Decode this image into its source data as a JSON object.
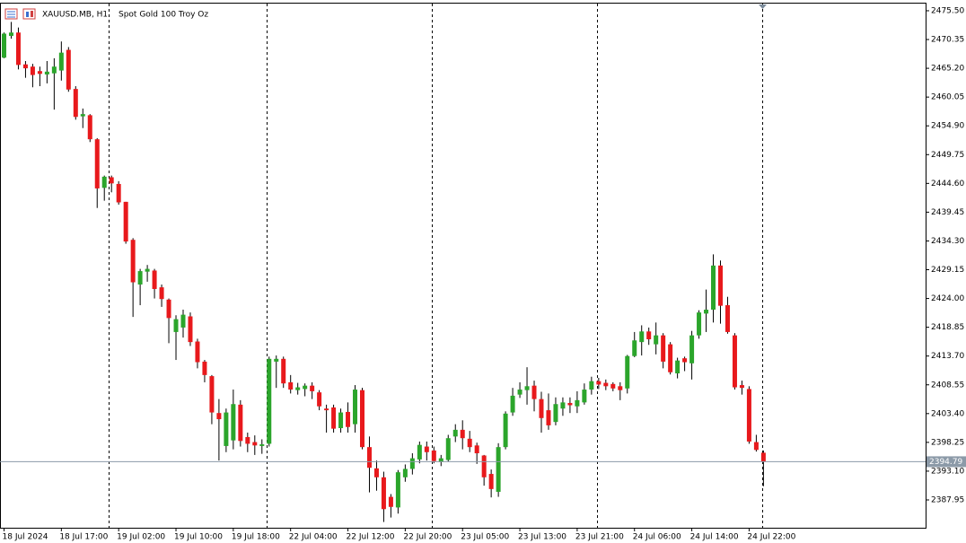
{
  "chart_data": {
    "type": "candlestick",
    "title": "XAUUSD.MB, H1",
    "subtitle": "Spot Gold 100 Troy Oz",
    "categories": [
      "18 Jul 2024",
      null,
      null,
      null,
      null,
      null,
      null,
      null,
      "18 Jul 17:00",
      null,
      null,
      null,
      null,
      null,
      null,
      null,
      "19 Jul 02:00",
      null,
      null,
      null,
      null,
      null,
      null,
      null,
      "19 Jul 10:00",
      null,
      null,
      null,
      null,
      null,
      null,
      null,
      "19 Jul 18:00",
      null,
      null,
      null,
      null,
      null,
      null,
      null,
      "22 Jul 04:00",
      null,
      null,
      null,
      null,
      null,
      null,
      null,
      "22 Jul 12:00",
      null,
      null,
      null,
      null,
      null,
      null,
      null,
      "22 Jul 20:00",
      null,
      null,
      null,
      null,
      null,
      null,
      null,
      "23 Jul 05:00",
      null,
      null,
      null,
      null,
      null,
      null,
      null,
      "23 Jul 13:00",
      null,
      null,
      null,
      null,
      null,
      null,
      null,
      "23 Jul 21:00",
      null,
      null,
      null,
      null,
      null,
      null,
      null,
      "24 Jul 06:00",
      null,
      null,
      null,
      null,
      null,
      null,
      null,
      "24 Jul 14:00",
      null,
      null,
      null,
      null,
      null,
      null,
      null,
      "24 Jul 22:00",
      null,
      null
    ],
    "open": [
      2467.1,
      2471.0,
      2471.6,
      2465.9,
      2465.5,
      2464.7,
      2464.1,
      2464.3,
      2464.8,
      2468.5,
      2461.5,
      2456.6,
      2456.8,
      2452.5,
      2443.8,
      2445.7,
      2444.5,
      2441.3,
      2434.5,
      2426.5,
      2428.8,
      2429.0,
      2426.0,
      2423.8,
      2418.0,
      2418.8,
      2420.8,
      2416.3,
      2412.7,
      2410.1,
      2403.5,
      2397.6,
      2398.6,
      2405.0,
      2399.2,
      2398.3,
      2397.6,
      2398.0,
      2412.7,
      2413.2,
      2409.0,
      2407.6,
      2407.8,
      2408.4,
      2407.2,
      2404.3,
      2404.5,
      2400.8,
      2403.7,
      2401.5,
      2407.6,
      2397.4,
      2393.6,
      2392.0,
      2388.5,
      2386.6,
      2392.0,
      2393.5,
      2395.2,
      2397.5,
      2396.8,
      2394.7,
      2395.1,
      2399.3,
      2400.5,
      2398.9,
      2397.7,
      2395.9,
      2392.6,
      2389.4,
      2397.4,
      2403.6,
      2406.8,
      2407.6,
      2408.4,
      2406.0,
      2404.0,
      2401.9,
      2404.3,
      2405.3,
      2404.7,
      2405.4,
      2407.7,
      2409.2,
      2408.9,
      2408.7,
      2408.3,
      2407.9,
      2413.7,
      2416.2,
      2418.1,
      2415.8,
      2417.4,
      2415.8,
      2410.6,
      2413.3,
      2412.4,
      2417.4,
      2421.3,
      2422.0,
      2429.9,
      2422.8,
      2417.4,
      2408.5,
      2407.8,
      2398.3,
      2396.4
    ],
    "high": [
      2471.6,
      2473.5,
      2472.5,
      2466.5,
      2466.0,
      2465.5,
      2466.5,
      2467.0,
      2470.0,
      2469.0,
      2462.0,
      2458.0,
      2457.0,
      2452.7,
      2446.0,
      2446.0,
      2445.0,
      2441.3,
      2434.8,
      2429.3,
      2430.0,
      2429.3,
      2426.5,
      2424.0,
      2421.0,
      2422.0,
      2421.5,
      2416.8,
      2413.0,
      2410.3,
      2406.0,
      2404.3,
      2407.7,
      2405.8,
      2400.0,
      2399.5,
      2398.8,
      2413.6,
      2413.8,
      2413.6,
      2410.3,
      2408.9,
      2408.8,
      2409.0,
      2407.6,
      2405.0,
      2405.0,
      2404.3,
      2405.4,
      2408.5,
      2408.0,
      2399.3,
      2395.0,
      2393.0,
      2389.0,
      2393.3,
      2394.3,
      2396.3,
      2398.4,
      2398.4,
      2397.5,
      2396.0,
      2399.6,
      2401.5,
      2402.2,
      2400.3,
      2398.2,
      2396.0,
      2393.4,
      2398.1,
      2403.8,
      2408.0,
      2409.0,
      2411.7,
      2409.3,
      2407.3,
      2407.0,
      2406.3,
      2406.3,
      2406.3,
      2407.4,
      2408.8,
      2410.0,
      2409.8,
      2409.5,
      2409.0,
      2409.0,
      2413.9,
      2418.0,
      2419.2,
      2418.8,
      2419.7,
      2417.8,
      2416.2,
      2413.4,
      2413.6,
      2418.2,
      2421.9,
      2425.6,
      2431.9,
      2430.8,
      2424.3,
      2417.8,
      2409.3,
      2408.3,
      2399.6,
      2396.8
    ],
    "low": [
      2467.0,
      2470.5,
      2465.0,
      2463.5,
      2461.8,
      2462.0,
      2462.5,
      2457.8,
      2463.0,
      2461.0,
      2456.0,
      2454.5,
      2452.0,
      2440.2,
      2441.5,
      2443.0,
      2440.8,
      2433.8,
      2420.7,
      2422.8,
      2427.0,
      2424.0,
      2422.5,
      2416.0,
      2413.0,
      2417.0,
      2415.5,
      2411.5,
      2409.0,
      2401.5,
      2395.0,
      2396.5,
      2397.0,
      2397.5,
      2396.5,
      2396.0,
      2396.2,
      2397.5,
      2408.0,
      2408.0,
      2407.0,
      2406.8,
      2406.5,
      2406.0,
      2404.0,
      2400.0,
      2400.0,
      2400.0,
      2400.0,
      2400.0,
      2397.0,
      2389.3,
      2389.6,
      2384.0,
      2384.8,
      2385.5,
      2391.2,
      2392.5,
      2394.5,
      2395.0,
      2394.5,
      2394.0,
      2394.8,
      2398.3,
      2397.0,
      2396.5,
      2394.4,
      2390.5,
      2388.4,
      2388.5,
      2397.0,
      2403.0,
      2406.2,
      2405.0,
      2403.8,
      2400.0,
      2400.5,
      2401.3,
      2403.0,
      2403.5,
      2403.5,
      2405.0,
      2406.8,
      2407.8,
      2407.6,
      2407.4,
      2405.8,
      2407.0,
      2413.5,
      2413.8,
      2415.7,
      2414.0,
      2411.5,
      2410.4,
      2409.7,
      2411.0,
      2409.5,
      2416.8,
      2418.0,
      2419.7,
      2419.5,
      2417.7,
      2407.7,
      2406.8,
      2398.0,
      2396.6,
      2390.4
    ],
    "close": [
      2471.4,
      2471.6,
      2465.8,
      2465.2,
      2464.0,
      2464.2,
      2464.6,
      2465.5,
      2468.0,
      2461.4,
      2456.5,
      2457.0,
      2452.5,
      2443.7,
      2445.8,
      2444.6,
      2441.2,
      2434.2,
      2426.9,
      2428.9,
      2429.3,
      2425.7,
      2423.9,
      2420.5,
      2420.3,
      2421.1,
      2416.2,
      2412.6,
      2410.3,
      2403.6,
      2402.4,
      2403.6,
      2405.1,
      2398.5,
      2398.0,
      2397.7,
      2397.9,
      2413.2,
      2413.2,
      2408.8,
      2407.7,
      2408.1,
      2408.4,
      2407.4,
      2404.7,
      2404.0,
      2400.7,
      2403.6,
      2401.0,
      2407.7,
      2397.4,
      2393.7,
      2392.0,
      2386.3,
      2386.7,
      2392.9,
      2393.5,
      2395.4,
      2397.8,
      2396.5,
      2394.9,
      2395.4,
      2399.0,
      2400.5,
      2399.0,
      2397.4,
      2396.3,
      2392.0,
      2389.9,
      2397.4,
      2403.4,
      2406.6,
      2407.7,
      2408.3,
      2406.0,
      2402.6,
      2401.3,
      2405.1,
      2405.4,
      2404.9,
      2405.8,
      2407.7,
      2409.2,
      2408.6,
      2408.3,
      2407.9,
      2407.6,
      2413.7,
      2416.5,
      2418.1,
      2416.7,
      2417.4,
      2412.7,
      2410.8,
      2412.9,
      2412.6,
      2417.4,
      2421.5,
      2422.0,
      2429.9,
      2422.7,
      2418.0,
      2408.1,
      2408.0,
      2398.4,
      2396.9,
      2394.8
    ],
    "up_color": "#2ba52b",
    "down_color": "#e8191c",
    "last_price": 2394.79,
    "ylim": [
      2382.97,
      2476.78
    ],
    "yticks": [
      {
        "value": 2475.5,
        "label": "2475.50"
      },
      {
        "value": 2470.35,
        "label": "2470.35"
      },
      {
        "value": 2465.2,
        "label": "2465.20"
      },
      {
        "value": 2460.05,
        "label": "2460.05"
      },
      {
        "value": 2454.9,
        "label": "2454.90"
      },
      {
        "value": 2449.75,
        "label": "2449.75"
      },
      {
        "value": 2444.6,
        "label": "2444.60"
      },
      {
        "value": 2439.45,
        "label": "2439.45"
      },
      {
        "value": 2434.3,
        "label": "2434.30"
      },
      {
        "value": 2429.15,
        "label": "2429.15"
      },
      {
        "value": 2424,
        "label": "2424.00"
      },
      {
        "value": 2418.85,
        "label": "2418.85"
      },
      {
        "value": 2413.7,
        "label": "2413.70"
      },
      {
        "value": 2408.55,
        "label": "2408.55"
      },
      {
        "value": 2403.4,
        "label": "2403.40"
      },
      {
        "value": 2398.25,
        "label": "2398.25"
      },
      {
        "value": 2393.1,
        "label": "2393.10"
      },
      {
        "value": 2387.95,
        "label": "2387.95"
      }
    ]
  }
}
